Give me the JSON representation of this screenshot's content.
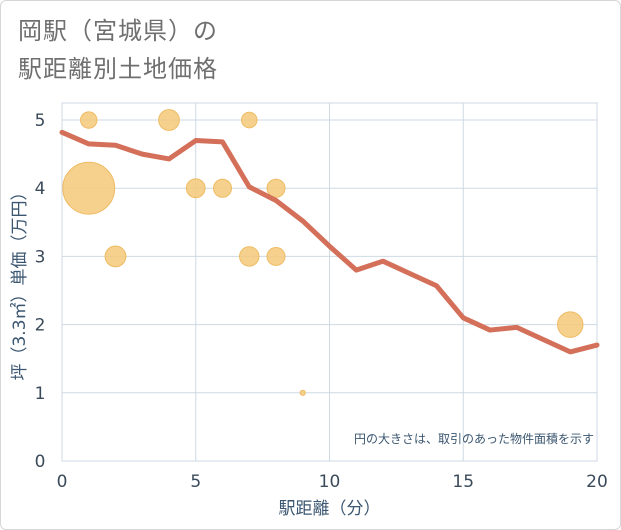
{
  "title_line1": "岡駅（宮城県）の",
  "title_line2": "駅距離別土地価格",
  "colors": {
    "line": "#d4705a",
    "bubble": "#f5c97a",
    "bubble_edge": "#eebb62",
    "grid": "#cdd9e3",
    "plot_bg": "#ffffff"
  },
  "chart_data": {
    "type": "scatter",
    "xlabel": "駅距離（分）",
    "ylabel": "坪（3.3㎡）単価（万円）",
    "xlim": [
      0,
      20
    ],
    "ylim": [
      0,
      5.25
    ],
    "xticks": [
      0,
      5,
      10,
      15,
      20
    ],
    "yticks": [
      0,
      1,
      2,
      3,
      4,
      5
    ],
    "grid": true,
    "note": "円の大きさは、取引のあった物件面積を示す",
    "bubbles": [
      {
        "x": 1,
        "y": 5,
        "size": 1
      },
      {
        "x": 4,
        "y": 5,
        "size": 1.6
      },
      {
        "x": 7,
        "y": 5,
        "size": 0.9
      },
      {
        "x": 1,
        "y": 4,
        "size": 10
      },
      {
        "x": 5,
        "y": 4,
        "size": 1.3
      },
      {
        "x": 6,
        "y": 4,
        "size": 1.2
      },
      {
        "x": 8,
        "y": 4,
        "size": 1.2
      },
      {
        "x": 2,
        "y": 3,
        "size": 1.6
      },
      {
        "x": 7,
        "y": 3,
        "size": 1.4
      },
      {
        "x": 8,
        "y": 3,
        "size": 1.2
      },
      {
        "x": 19,
        "y": 2,
        "size": 2.4
      },
      {
        "x": 9,
        "y": 1,
        "size": 0.1
      }
    ],
    "series": [
      {
        "x": [
          0,
          1,
          2,
          3,
          4,
          5,
          6,
          7,
          8,
          9,
          10,
          11,
          12,
          13,
          14,
          15,
          16,
          17,
          18,
          19,
          20
        ],
        "y": [
          4.82,
          4.65,
          4.63,
          4.5,
          4.43,
          4.7,
          4.68,
          4.02,
          3.82,
          3.52,
          3.15,
          2.8,
          2.93,
          2.75,
          2.57,
          2.1,
          1.92,
          1.96,
          1.78,
          1.6,
          1.7
        ]
      }
    ]
  }
}
